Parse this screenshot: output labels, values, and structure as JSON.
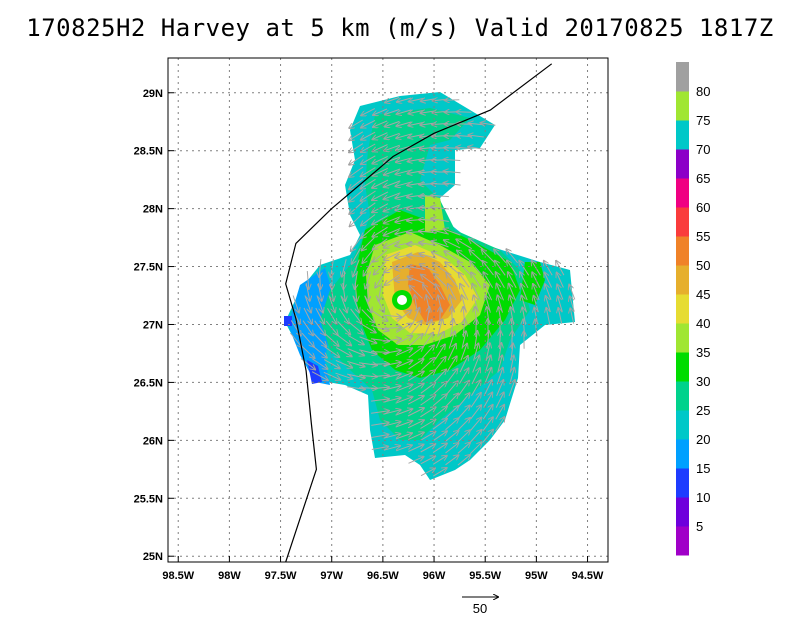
{
  "title": "170825H2 Harvey at 5 km (m/s) Valid 20170825 1817Z",
  "map": {
    "lon_range": [
      -98.6,
      -94.3
    ],
    "lat_range": [
      24.95,
      29.3
    ],
    "lon_ticks": [
      {
        "value": -98.5,
        "label": "98.5W"
      },
      {
        "value": -98,
        "label": "98W"
      },
      {
        "value": -97.5,
        "label": "97.5W"
      },
      {
        "value": -97,
        "label": "97W"
      },
      {
        "value": -96.5,
        "label": "96.5W"
      },
      {
        "value": -96,
        "label": "96W"
      },
      {
        "value": -95.5,
        "label": "95.5W"
      },
      {
        "value": -95,
        "label": "95W"
      },
      {
        "value": -94.5,
        "label": "94.5W"
      }
    ],
    "lat_ticks": [
      {
        "value": 25,
        "label": "25N"
      },
      {
        "value": 25.5,
        "label": "25.5N"
      },
      {
        "value": 26,
        "label": "26N"
      },
      {
        "value": 26.5,
        "label": "26.5N"
      },
      {
        "value": 27,
        "label": "27N"
      },
      {
        "value": 27.5,
        "label": "27.5N"
      },
      {
        "value": 28,
        "label": "28N"
      },
      {
        "value": 28.5,
        "label": "28.5N"
      },
      {
        "value": 29,
        "label": "29N"
      }
    ],
    "storm_center": {
      "lon": -96.35,
      "lat": 27.2
    },
    "coastline": [
      [
        -97.45,
        24.95
      ],
      [
        -97.3,
        25.35
      ],
      [
        -97.15,
        25.75
      ],
      [
        -97.2,
        26.15
      ],
      [
        -97.25,
        26.6
      ],
      [
        -97.35,
        27.05
      ],
      [
        -97.45,
        27.35
      ],
      [
        -97.35,
        27.7
      ],
      [
        -97.0,
        28.0
      ],
      [
        -96.4,
        28.45
      ],
      [
        -96.0,
        28.65
      ],
      [
        -95.45,
        28.85
      ],
      [
        -94.85,
        29.25
      ]
    ]
  },
  "colorbar": {
    "labels": [
      "5",
      "10",
      "15",
      "20",
      "25",
      "30",
      "35",
      "40",
      "45",
      "50",
      "55",
      "60",
      "65",
      "70",
      "75",
      "80"
    ],
    "colors": [
      "#a000c8",
      "#6e00dc",
      "#1e3cff",
      "#00a0ff",
      "#00c8c8",
      "#00d28c",
      "#00dc00",
      "#a0e632",
      "#e6dc32",
      "#e6af2d",
      "#f08228",
      "#fa3c3c",
      "#f00082",
      "#8c00c8",
      "#00c8c8",
      "#a0e632",
      "#a0a0a0"
    ]
  },
  "reference_vector": {
    "label": "50",
    "value": 50
  }
}
